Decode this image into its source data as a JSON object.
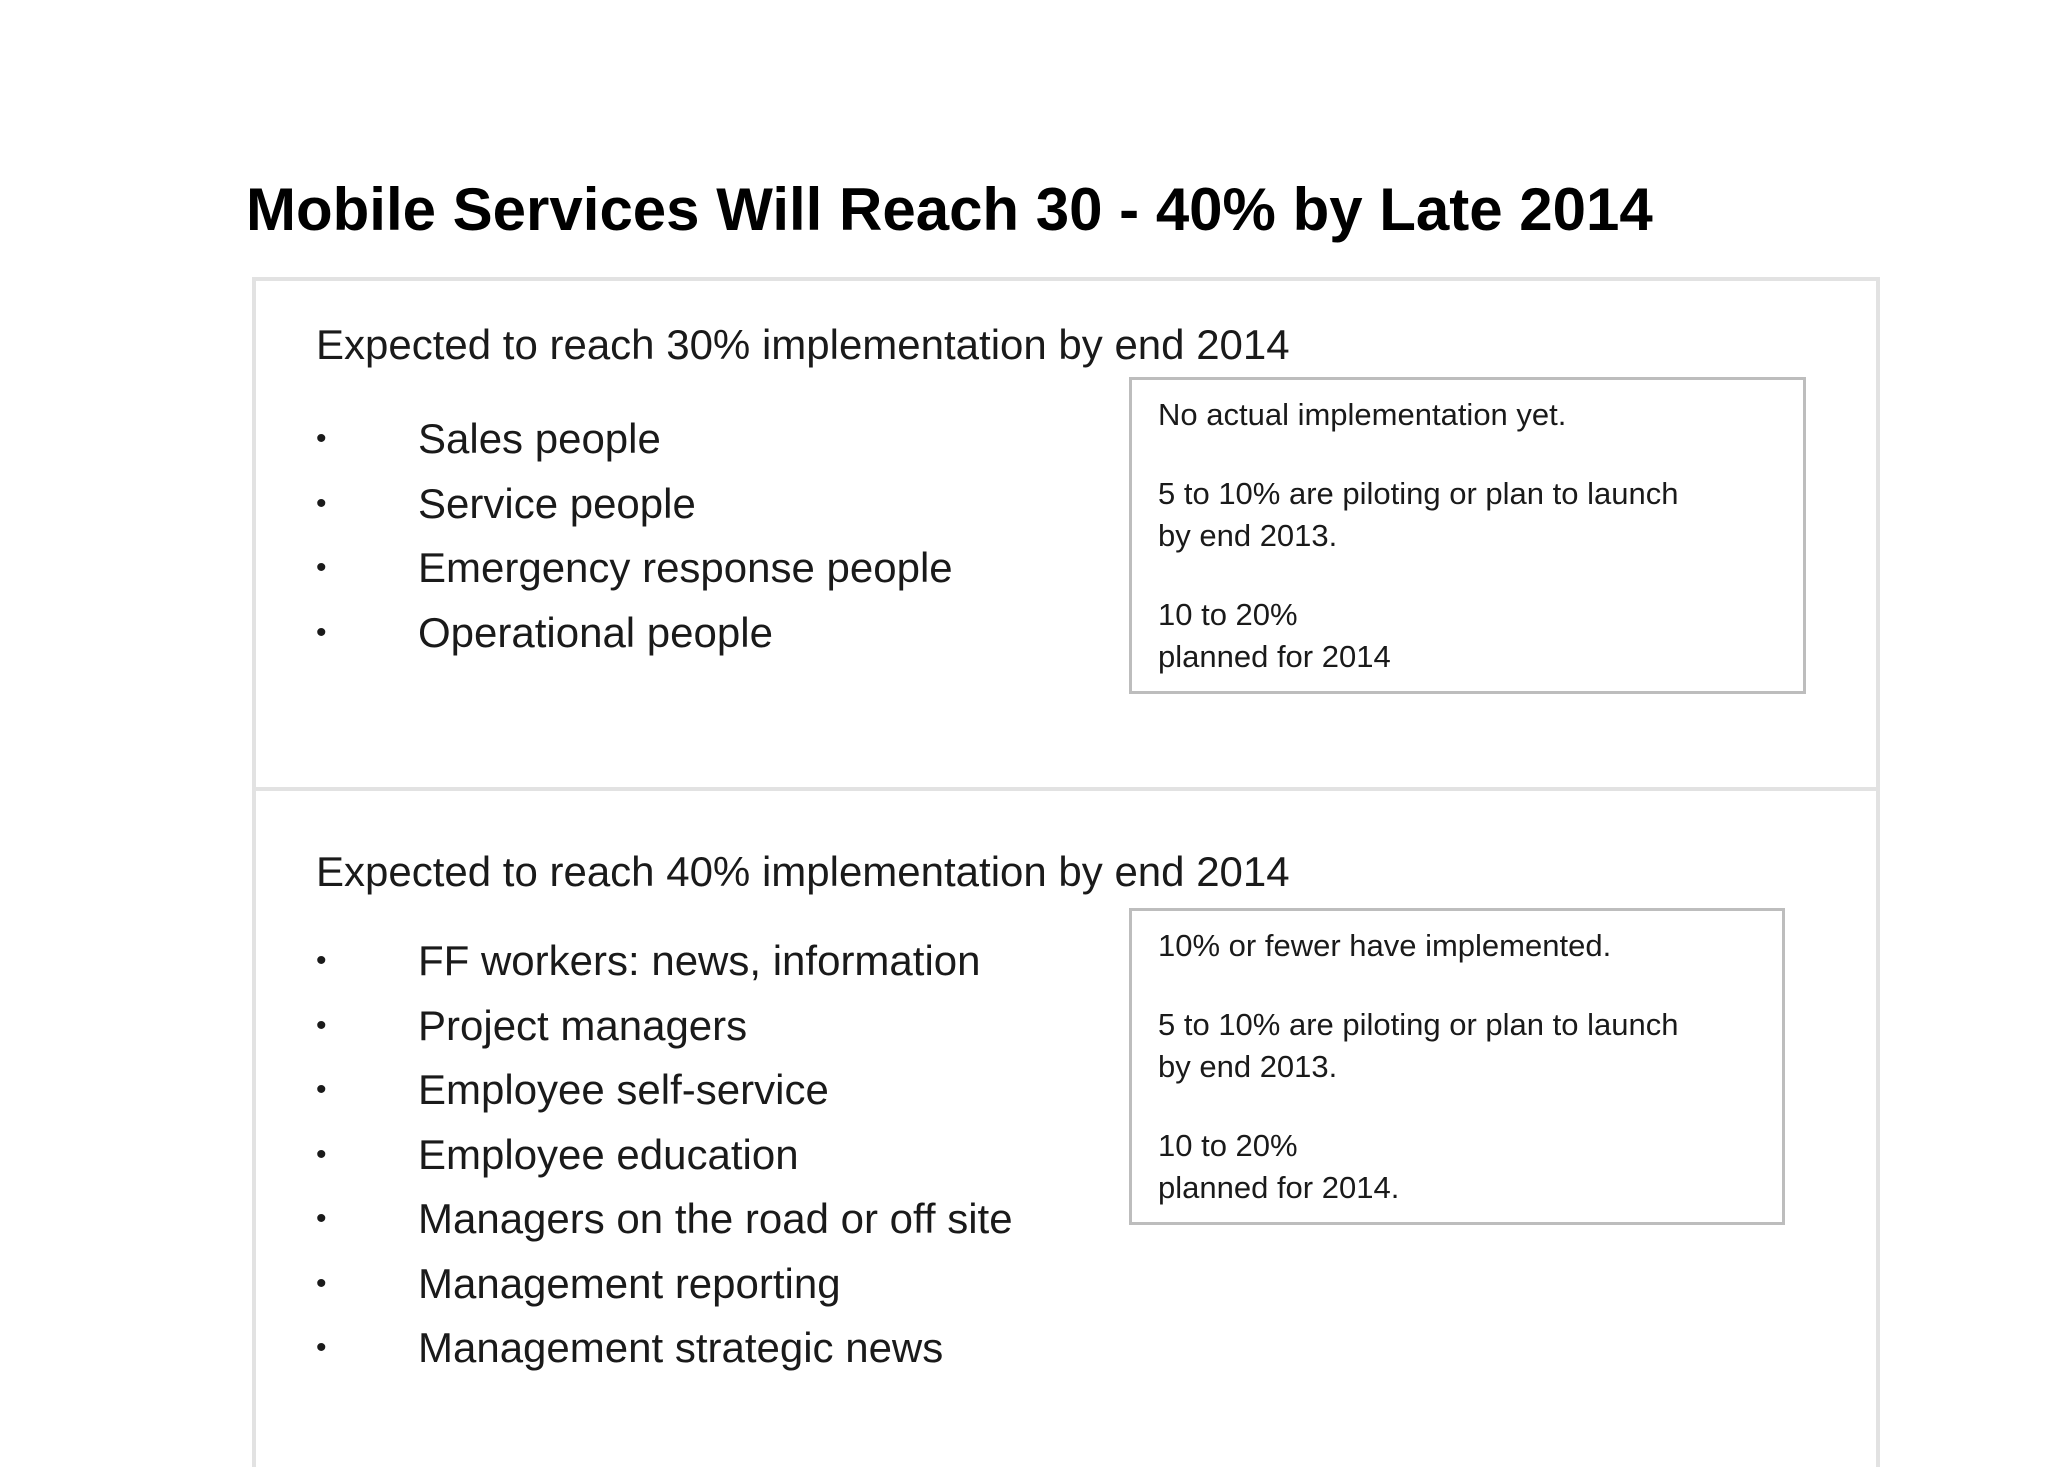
{
  "title": "Mobile Services Will Reach 30 - 40% by Late 2014",
  "sections": [
    {
      "heading": "Expected to reach 30% implementation by end 2014",
      "bullets": [
        "Sales people",
        "Service people",
        "Emergency response people",
        "Operational people"
      ],
      "notes": [
        "No actual implementation yet.",
        "5 to 10% are piloting or plan to launch\nby end 2013.",
        "10 to 20%\nplanned for 2014"
      ]
    },
    {
      "heading": "Expected to reach 40% implementation by end 2014",
      "bullets": [
        "FF workers: news, information",
        "Project managers",
        "Employee self-service",
        "Employee education",
        "Managers on the road or off site",
        "Management reporting",
        "Management strategic news"
      ],
      "notes": [
        "10% or fewer have implemented.",
        "5 to 10% are piloting or plan to launch\nby end 2013.",
        "10 to 20%\nplanned for 2014."
      ]
    }
  ],
  "bullet_symbol": "•"
}
